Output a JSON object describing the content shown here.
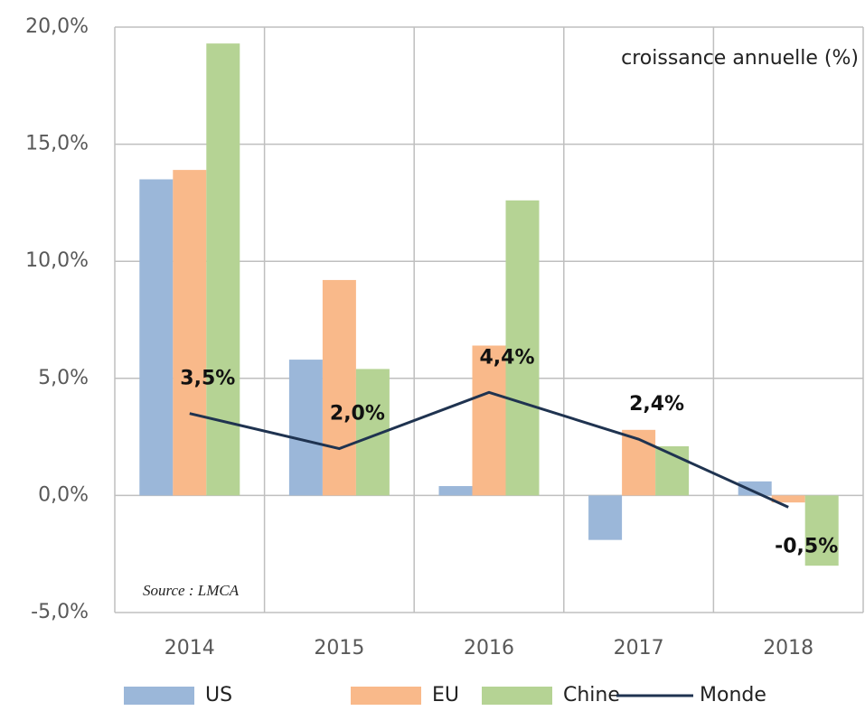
{
  "chart_data": {
    "type": "bar_line",
    "annotation": "croissance annuelle (%)",
    "source": "Source : LMCA",
    "categories": [
      "2014",
      "2015",
      "2016",
      "2017",
      "2018"
    ],
    "series": [
      {
        "name": "US",
        "color": "#9bb7d9",
        "type": "bar",
        "values": [
          13.5,
          5.8,
          0.4,
          -1.9,
          0.6
        ]
      },
      {
        "name": "EU",
        "color": "#f9b98a",
        "type": "bar",
        "values": [
          13.9,
          9.2,
          6.4,
          2.8,
          -0.3
        ]
      },
      {
        "name": "Chine",
        "color": "#b5d394",
        "type": "bar",
        "values": [
          19.3,
          5.4,
          12.6,
          2.1,
          -3.0
        ]
      },
      {
        "name": "Monde",
        "color": "#1f3350",
        "type": "line",
        "values": [
          3.5,
          2.0,
          4.4,
          2.4,
          -0.5
        ],
        "value_labels": [
          "3,5%",
          "2,0%",
          "4,4%",
          "2,4%",
          "-0,5%"
        ]
      }
    ],
    "ylim": [
      -5,
      20
    ],
    "yticks": [
      {
        "value": -5,
        "label": "-5,0%"
      },
      {
        "value": 0,
        "label": "0,0%"
      },
      {
        "value": 5,
        "label": "5,0%"
      },
      {
        "value": 10,
        "label": "10,0%"
      },
      {
        "value": 15,
        "label": "15,0%"
      },
      {
        "value": 20,
        "label": "20,0%"
      }
    ],
    "grid": true
  }
}
